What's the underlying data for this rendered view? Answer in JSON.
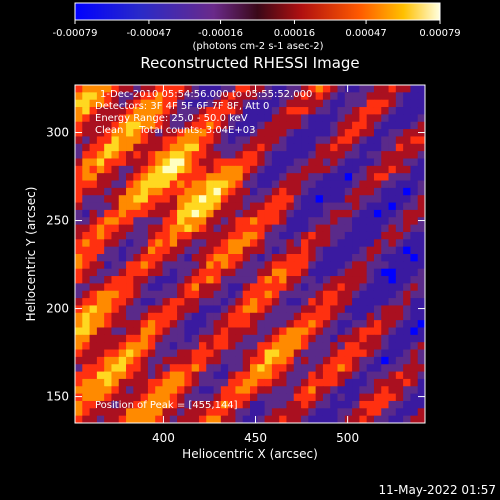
{
  "chart_data": {
    "type": "heatmap",
    "title": "Reconstructed RHESSI Image",
    "xlabel": "Heliocentric X (arcsec)",
    "ylabel": "Heliocentric Y (arcsec)",
    "xlim": [
      352,
      542
    ],
    "ylim": [
      135,
      327
    ],
    "x_ticks": [
      400,
      450,
      500
    ],
    "y_ticks": [
      150,
      200,
      250,
      300
    ],
    "colorbar": {
      "min": -0.00079,
      "max": 0.00079,
      "tick_values": [
        -0.00079,
        -0.00047,
        -0.00016,
        0.00016,
        0.00047,
        0.00079
      ],
      "tick_labels": [
        "-0.00079",
        "-0.00047",
        "-0.00016",
        "0.00016",
        "0.00047",
        "0.00079"
      ],
      "unit_label": "(photons cm-2 s-1 asec-2)"
    },
    "annotations": [
      "1-Dec-2010 05:54:56.000 to 05:55:52.000",
      "Detectors: 3F 4F 5F 6F 7F 8F, Att 0",
      "Energy Range: 25.0 - 50.0 keV",
      "Clean     Total counts: 3.04E+03"
    ],
    "peak_label": "Position of Peak = [455,144]",
    "peak_position": [
      455,
      144
    ],
    "colors": [
      "#0000ff",
      "#3a1aa0",
      "#5a2a8a",
      "#aa1020",
      "#ff3010",
      "#ff8a00",
      "#ffd820",
      "#ffffc0"
    ]
  },
  "footer": {
    "timestamp": "11-May-2022 01:57"
  }
}
